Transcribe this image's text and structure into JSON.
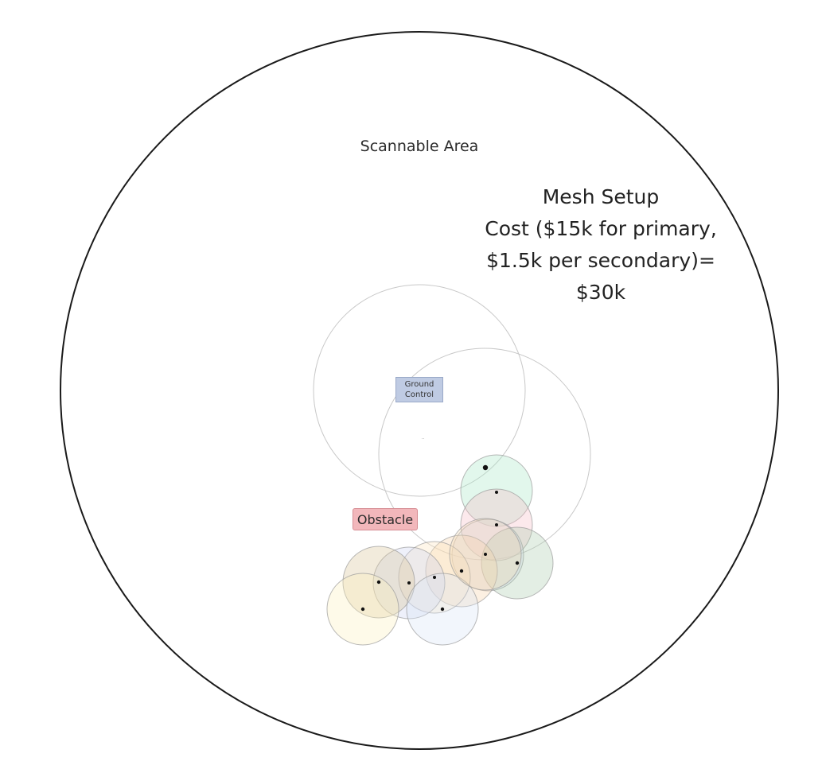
{
  "diagram": {
    "area_label": "Scannable Area",
    "mesh_setup": {
      "lines": [
        "Mesh Setup",
        "Cost ($15k for primary,",
        "$1.5k per secondary)=",
        "$30k"
      ]
    },
    "ground_control": {
      "line1": "Ground",
      "line2": "Control"
    },
    "obstacle_label": "Obstacle",
    "tiny_mark": "..",
    "colors": {
      "boundary": "#1a1a1a",
      "primary_range": "#c8c8c8",
      "ground_box_fill": "#bfcbe3",
      "obstacle_fill": "#f2b7bb"
    },
    "secondary_node_colors": [
      "#a8e6c4",
      "#f6bcc4",
      "#cfd0ee",
      "#a9ccae",
      "#f6d2a6",
      "#fbe5bc",
      "#ccd0f0",
      "#d9c294",
      "#fcefbc",
      "#d7e3f6",
      "#f3dcb6"
    ]
  }
}
